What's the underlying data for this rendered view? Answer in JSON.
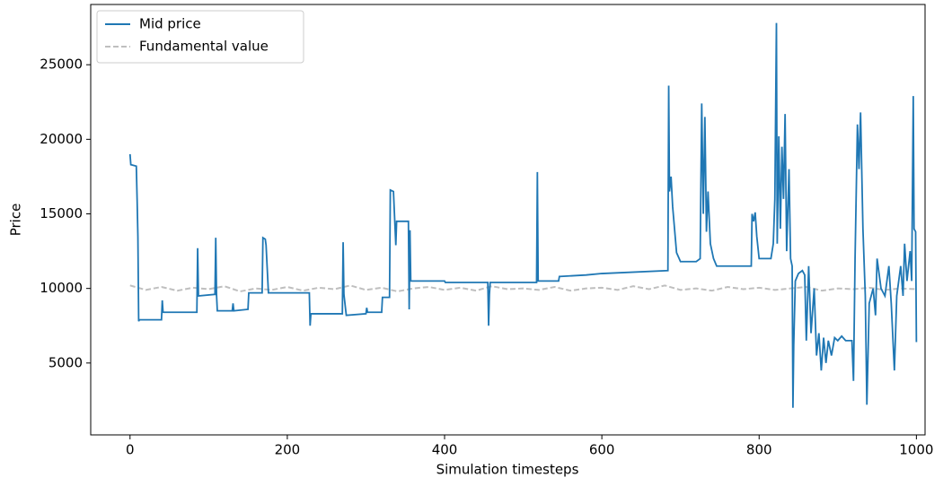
{
  "chart_data": {
    "type": "line",
    "xlabel": "Simulation timesteps",
    "ylabel": "Price",
    "xlim": [
      -50,
      1011
    ],
    "ylim": [
      180,
      29040
    ],
    "xticks": [
      0,
      200,
      400,
      600,
      800,
      1000
    ],
    "yticks": [
      5000,
      10000,
      15000,
      20000,
      25000
    ],
    "legend": "upper left",
    "series": [
      {
        "name": "Mid price",
        "color": "#1f77b4",
        "dash": false,
        "x": [
          0,
          1,
          8,
          9,
          10,
          11,
          12,
          40,
          41,
          42,
          85,
          86,
          87,
          108,
          109,
          110,
          111,
          130,
          131,
          132,
          150,
          151,
          168,
          169,
          172,
          173,
          176,
          228,
          229,
          230,
          270,
          271,
          272,
          275,
          300,
          301,
          302,
          320,
          321,
          330,
          331,
          335,
          338,
          339,
          354,
          355,
          356,
          357,
          400,
          401,
          455,
          456,
          457,
          458,
          517,
          518,
          519,
          545,
          546,
          580,
          600,
          684,
          685,
          686,
          688,
          690,
          695,
          700,
          720,
          725,
          727,
          729,
          731,
          733,
          735,
          738,
          742,
          746,
          790,
          791,
          793,
          795,
          797,
          800,
          815,
          818,
          820,
          822,
          823,
          825,
          827,
          829,
          831,
          833,
          835,
          838,
          840,
          842,
          843,
          844,
          846,
          850,
          855,
          858,
          860,
          863,
          866,
          870,
          873,
          876,
          879,
          882,
          885,
          888,
          892,
          896,
          900,
          905,
          910,
          918,
          920,
          922,
          925,
          927,
          929,
          932,
          935,
          937,
          940,
          945,
          948,
          950,
          955,
          960,
          965,
          968,
          972,
          975,
          980,
          983,
          985,
          988,
          992,
          994,
          996,
          997,
          999,
          1000
        ],
        "values": [
          19000,
          18300,
          18200,
          16000,
          13500,
          7800,
          7900,
          7900,
          9200,
          8400,
          8400,
          12700,
          9500,
          9600,
          13400,
          9600,
          8500,
          8500,
          9000,
          8500,
          8600,
          9700,
          9700,
          13400,
          13300,
          12900,
          9700,
          9700,
          7500,
          8300,
          8300,
          13100,
          9600,
          8200,
          8300,
          8700,
          8400,
          8400,
          9400,
          9400,
          16600,
          16500,
          12900,
          14500,
          14500,
          8600,
          13900,
          10500,
          10500,
          10400,
          10400,
          7500,
          9600,
          10400,
          10400,
          17800,
          10500,
          10500,
          10800,
          10900,
          11000,
          11200,
          23600,
          16500,
          17500,
          15500,
          12400,
          11800,
          11800,
          12000,
          22400,
          15000,
          21500,
          13800,
          16500,
          13000,
          12000,
          11500,
          11500,
          15000,
          14500,
          15100,
          13500,
          12000,
          12000,
          13000,
          16000,
          27800,
          13000,
          20200,
          14000,
          19500,
          16000,
          21700,
          12500,
          18000,
          12000,
          11500,
          2000,
          6200,
          10500,
          11000,
          11200,
          10900,
          6500,
          11500,
          7000,
          10000,
          5500,
          7000,
          4500,
          6700,
          5000,
          6500,
          5500,
          6700,
          6500,
          6800,
          6500,
          6500,
          3800,
          12000,
          21000,
          18000,
          21800,
          14000,
          9500,
          2200,
          9000,
          10000,
          8200,
          12000,
          10000,
          9500,
          11500,
          9000,
          4500,
          9500,
          11500,
          9500,
          13000,
          10500,
          12500,
          10500,
          22900,
          14000,
          13800,
          6400
        ]
      },
      {
        "name": "Fundamental value",
        "color": "#bfbfbf",
        "dash": true,
        "x": [
          0,
          20,
          40,
          60,
          80,
          100,
          120,
          140,
          160,
          180,
          200,
          220,
          240,
          260,
          280,
          300,
          320,
          340,
          360,
          380,
          400,
          420,
          440,
          460,
          480,
          500,
          520,
          540,
          560,
          580,
          600,
          620,
          640,
          660,
          680,
          700,
          720,
          740,
          760,
          780,
          800,
          820,
          840,
          860,
          880,
          900,
          920,
          940,
          960,
          980,
          1000
        ],
        "values": [
          10200,
          9900,
          10100,
          9850,
          10050,
          9950,
          10150,
          9800,
          10000,
          9900,
          10100,
          9850,
          10050,
          9950,
          10200,
          9900,
          10050,
          9800,
          10000,
          10100,
          9900,
          10050,
          9850,
          10150,
          9950,
          10000,
          9900,
          10100,
          9850,
          10000,
          10050,
          9900,
          10150,
          9950,
          10200,
          9900,
          10000,
          9850,
          10100,
          9950,
          10050,
          9900,
          10000,
          10100,
          9850,
          10000,
          9950,
          10050,
          9900,
          10000,
          9950
        ]
      }
    ]
  }
}
